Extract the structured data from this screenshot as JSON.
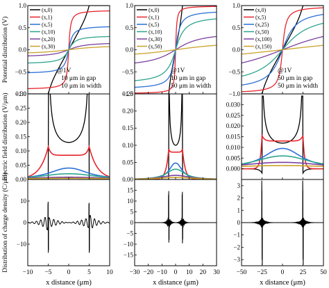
{
  "colors": {
    "s0": "#000000",
    "s1": "#e8232a",
    "s2": "#2a6fd6",
    "s3": "#2ca58d",
    "s4": "#7b3fa0",
    "s5": "#c9a227"
  },
  "ylabels": {
    "row0": "Potential distribution (V)",
    "row1": "Electric field distribution (V/μm)",
    "row2": "Distribution of charge density (C/μm)"
  },
  "xlabel": "x distance (μm)",
  "columns": [
    {
      "legend": [
        "(x,0)",
        "(x,1)",
        "(x,5)",
        "(x,10)",
        "(x,20)",
        "(x,30)"
      ],
      "annotation": [
        "@1V",
        "10 μm in gap",
        "10 μm in width"
      ],
      "xticks": [
        "−10",
        "−5",
        "0",
        "5",
        "10"
      ]
    },
    {
      "legend": [
        "(x,0)",
        "(x,1)",
        "(x,5)",
        "(x,10)",
        "(x,30)",
        "(x,50)"
      ],
      "annotation": [
        "@1V",
        "10 μm in gap",
        "50 μm in width"
      ],
      "xticks": [
        "−30",
        "−20",
        "−10",
        "0",
        "10",
        "20",
        "30"
      ]
    },
    {
      "legend": [
        "(x,0)",
        "(x,5)",
        "(x,25)",
        "(x,50)",
        "(x,100)",
        "(x,150)"
      ],
      "annotation": [
        "@1V",
        "50 μm in gap",
        "50 μm in width"
      ],
      "xticks": [
        "−50",
        "−25",
        "0",
        "25",
        "50"
      ]
    }
  ],
  "chart_data": [
    {
      "type": "line",
      "panel": "potential-col1",
      "xlim": [
        -10,
        10
      ],
      "ylim": [
        -1,
        1
      ],
      "yticks": [
        "−1.0",
        "−0.5",
        "0.0",
        "0.5",
        "1.0"
      ],
      "series": [
        {
          "name": "(x,0)",
          "y_at_x10": 1.0
        },
        {
          "name": "(x,1)",
          "y_at_x10": 0.88
        },
        {
          "name": "(x,5)",
          "y_at_x10": 0.52
        },
        {
          "name": "(x,10)",
          "y_at_x10": 0.3
        },
        {
          "name": "(x,20)",
          "y_at_x10": 0.14
        },
        {
          "name": "(x,30)",
          "y_at_x10": 0.07
        }
      ]
    },
    {
      "type": "line",
      "panel": "potential-col2",
      "xlim": [
        -30,
        30
      ],
      "ylim": [
        -1,
        1
      ],
      "yticks": [
        "−1.0",
        "−0.5",
        "0.0",
        "0.5",
        "1.0"
      ],
      "series": [
        {
          "name": "(x,0)",
          "y_at_x30": 1.0
        },
        {
          "name": "(x,1)",
          "y_at_x30": 0.98
        },
        {
          "name": "(x,5)",
          "y_at_x30": 0.85
        },
        {
          "name": "(x,10)",
          "y_at_x30": 0.7
        },
        {
          "name": "(x,30)",
          "y_at_x30": 0.3
        },
        {
          "name": "(x,50)",
          "y_at_x30": 0.1
        }
      ]
    },
    {
      "type": "line",
      "panel": "potential-col3",
      "xlim": [
        -50,
        50
      ],
      "ylim": [
        -1,
        1
      ],
      "yticks": [
        "−1.0",
        "−0.5",
        "0.0",
        "0.5",
        "1.0"
      ],
      "series": [
        {
          "name": "(x,0)",
          "y_at_x50": 1.0
        },
        {
          "name": "(x,5)",
          "y_at_x50": 0.95
        },
        {
          "name": "(x,25)",
          "y_at_x50": 0.8
        },
        {
          "name": "(x,50)",
          "y_at_x50": 0.6
        },
        {
          "name": "(x,100)",
          "y_at_x50": 0.3
        },
        {
          "name": "(x,150)",
          "y_at_x50": 0.1
        }
      ]
    },
    {
      "type": "line",
      "panel": "field-col1",
      "xlim": [
        -10,
        10
      ],
      "ylim": [
        0,
        0.3
      ],
      "yticks": [
        "0.00",
        "0.05",
        "0.10",
        "0.15",
        "0.20",
        "0.25",
        "0.30"
      ],
      "series": [
        {
          "name": "(x,0)",
          "center": 0.13,
          "peak": 0.26
        },
        {
          "name": "(x,1)",
          "center": 0.085,
          "peak": 0.115
        },
        {
          "name": "(x,5)",
          "center": 0.04
        },
        {
          "name": "(x,10)",
          "center": 0.02
        },
        {
          "name": "(x,20)",
          "center": 0.008
        },
        {
          "name": "(x,30)",
          "center": 0.004
        }
      ]
    },
    {
      "type": "line",
      "panel": "field-col2",
      "xlim": [
        -30,
        30
      ],
      "ylim": [
        0,
        0.25
      ],
      "yticks": [
        "0.00",
        "0.05",
        "0.10",
        "0.15",
        "0.20",
        "0.25"
      ],
      "series": [
        {
          "name": "(x,0)",
          "center": 0.1,
          "peak": 0.21
        },
        {
          "name": "(x,1)",
          "center": 0.08,
          "peak": 0.09
        },
        {
          "name": "(x,5)",
          "center": 0.048
        },
        {
          "name": "(x,10)",
          "center": 0.03
        },
        {
          "name": "(x,30)",
          "center": 0.012
        },
        {
          "name": "(x,50)",
          "center": 0.006
        }
      ]
    },
    {
      "type": "line",
      "panel": "field-col3",
      "xlim": [
        -50,
        50
      ],
      "ylim": [
        -0.005,
        0.035
      ],
      "yticks": [
        "0.000",
        "0.005",
        "0.010",
        "0.015",
        "0.020",
        "0.025",
        "0.030"
      ],
      "series": [
        {
          "name": "(x,0)",
          "center": 0.012,
          "peak": 0.033
        },
        {
          "name": "(x,5)",
          "center": 0.013,
          "peak": 0.0155
        },
        {
          "name": "(x,25)",
          "center": 0.0095
        },
        {
          "name": "(x,50)",
          "center": 0.006
        },
        {
          "name": "(x,100)",
          "center": 0.003
        },
        {
          "name": "(x,150)",
          "center": 0.0015
        }
      ]
    },
    {
      "type": "line",
      "panel": "charge-col1",
      "xlim": [
        -10,
        10
      ],
      "ylim": [
        -20,
        20
      ],
      "yticks": [
        "−10",
        "0",
        "10"
      ],
      "series": [
        {
          "values_note": "oscillating, spikes at x=±5",
          "peak": 10,
          "trough": -14
        }
      ]
    },
    {
      "type": "line",
      "panel": "charge-col2",
      "xlim": [
        -30,
        30
      ],
      "ylim": [
        -20,
        20
      ],
      "yticks": [
        "−15",
        "−10",
        "−5",
        "0",
        "5",
        "10",
        "15"
      ],
      "series": [
        {
          "values_note": "spikes at x=±5",
          "peak": 15,
          "trough": -10
        }
      ]
    },
    {
      "type": "line",
      "panel": "charge-col3",
      "xlim": [
        -50,
        50
      ],
      "ylim": [
        -3.5,
        3.5
      ],
      "yticks": [
        "−3",
        "−2",
        "−1",
        "0",
        "1",
        "2",
        "3"
      ],
      "series": [
        {
          "values_note": "spikes at x=±25",
          "peak": 3,
          "trough": -3
        }
      ]
    }
  ]
}
